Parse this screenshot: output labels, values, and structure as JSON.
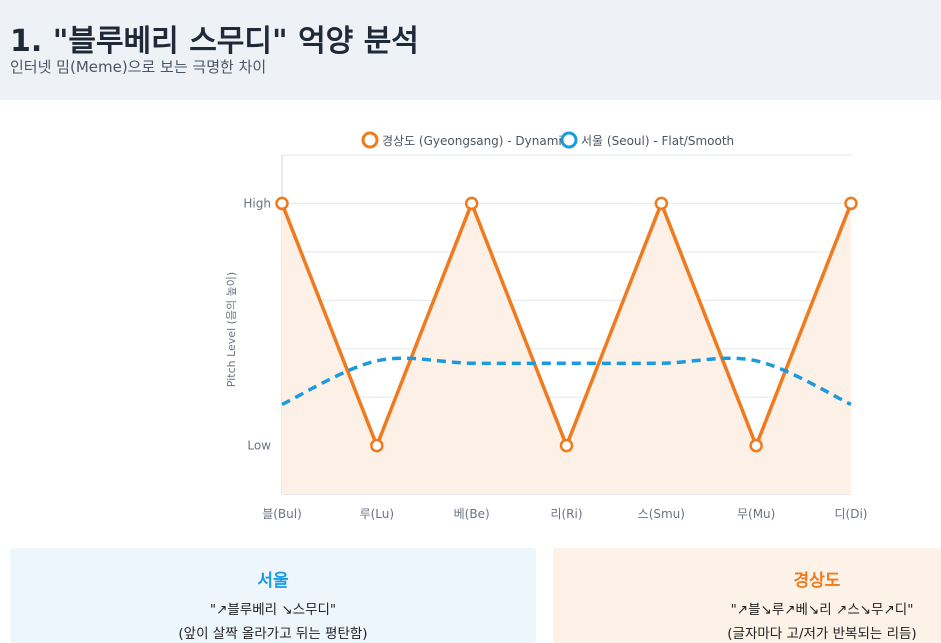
{
  "header": {
    "title": "1. \"블루베리 스무디\" 억양 분석",
    "subtitle": "인터넷 밈(Meme)으로 보는 극명한 차이"
  },
  "colors": {
    "gyeongsang": "#f07a1e",
    "seoul": "#1a9be0",
    "grid": "#e5e7eb",
    "axis_text": "#6b7280",
    "fill": "#fdf0e6"
  },
  "chart_data": {
    "type": "line",
    "categories": [
      "블(Bul)",
      "루(Lu)",
      "베(Be)",
      "리(Ri)",
      "스(Smu)",
      "무(Mu)",
      "디(Di)"
    ],
    "ylabel": "Pitch Level (음의 높이)",
    "ylim": [
      -0.2,
      1.2
    ],
    "y_ticks": [
      {
        "value": 0,
        "label": "Low"
      },
      {
        "value": 1,
        "label": "High"
      }
    ],
    "legend_position": "top-center",
    "series": [
      {
        "name": "경상도 (Gyeongsang) - Dynamic",
        "style": "solid",
        "markers": true,
        "filled": true,
        "values": [
          1,
          0,
          1,
          0,
          1,
          0,
          1
        ]
      },
      {
        "name": "서울 (Seoul) - Flat/Smooth",
        "style": "dashed",
        "markers": false,
        "filled": false,
        "values": [
          0.17,
          0.35,
          0.34,
          0.34,
          0.34,
          0.35,
          0.17
        ]
      }
    ]
  },
  "cards": {
    "seoul": {
      "title": "서울",
      "pattern": "\"↗블루베리 ↘스무디\"",
      "description": "(앞이 살짝 올라가고 뒤는 평탄함)"
    },
    "gyeongsang": {
      "title": "경상도",
      "pattern": "\"↗블↘루↗베↘리 ↗스↘무↗디\"",
      "description": "(글자마다 고/저가 반복되는 리듬)"
    }
  }
}
